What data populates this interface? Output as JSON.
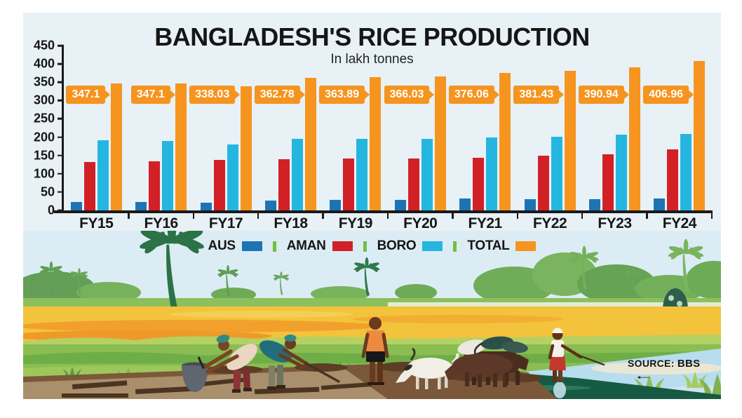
{
  "title": "BANGLADESH'S RICE PRODUCTION",
  "subtitle": "In lakh tonnes",
  "source": {
    "label": "SOURCE:",
    "value": "BBS"
  },
  "colors": {
    "background": "#e8f1f6",
    "axis": "#1a1a1a",
    "flag": "#f5941f",
    "legend_divider": "#72bf44",
    "aus": "#1d74b5",
    "aman": "#d12127",
    "boro": "#25b6e0",
    "total": "#f5941f"
  },
  "legend": {
    "items": [
      {
        "label": "AUS",
        "color": "#1d74b5"
      },
      {
        "label": "AMAN",
        "color": "#d12127"
      },
      {
        "label": "BORO",
        "color": "#25b6e0"
      },
      {
        "label": "TOTAL",
        "color": "#f5941f"
      }
    ]
  },
  "chart_data": {
    "type": "bar",
    "title": "BANGLADESH'S RICE PRODUCTION",
    "subtitle": "In lakh tonnes",
    "unit": "lakh tonnes",
    "categories": [
      "FY15",
      "FY16",
      "FY17",
      "FY18",
      "FY19",
      "FY20",
      "FY21",
      "FY22",
      "FY23",
      "FY24"
    ],
    "series": [
      {
        "name": "AUS",
        "color": "#1d74b5",
        "values": [
          23,
          23,
          21,
          27,
          28,
          28,
          33,
          30,
          31,
          32
        ]
      },
      {
        "name": "AMAN",
        "color": "#d12127",
        "values": [
          132,
          135,
          137,
          140,
          141,
          142,
          144,
          150,
          153,
          166
        ]
      },
      {
        "name": "BORO",
        "color": "#25b6e0",
        "values": [
          192,
          189,
          180,
          196,
          195,
          196,
          199,
          202,
          207,
          209
        ]
      },
      {
        "name": "TOTAL",
        "color": "#f5941f",
        "values": [
          347.1,
          347.1,
          338.03,
          362.78,
          363.89,
          366.03,
          376.06,
          381.43,
          390.94,
          406.96
        ]
      }
    ],
    "total_labels": [
      "347.1",
      "347.1",
      "338.03",
      "362.78",
      "363.89",
      "366.03",
      "376.06",
      "381.43",
      "390.94",
      "406.96"
    ],
    "ylim": [
      0,
      450
    ],
    "y_ticks": [
      0,
      50,
      100,
      150,
      200,
      250,
      300,
      350,
      400,
      450
    ],
    "grid": false,
    "legend_position": "bottom"
  }
}
